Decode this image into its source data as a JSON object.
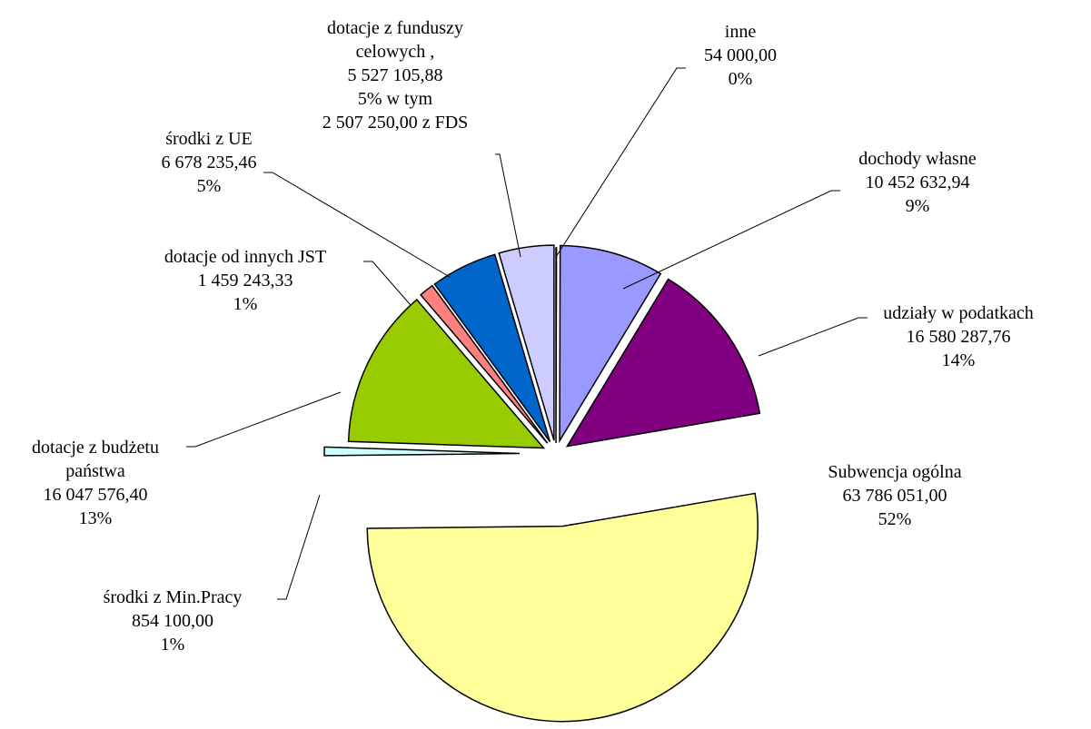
{
  "chart_data": {
    "type": "pie",
    "categories": [
      "inne",
      "dochody własne",
      "udziały w podatkach",
      "Subwencja ogólna",
      "środki z Min.Pracy",
      "dotacje z budżetu państwa",
      "dotacje od innych JST",
      "środki z UE",
      "dotacje z funduszy celowych ,"
    ],
    "values": [
      54000,
      10452632.94,
      16580287.76,
      63786051,
      854100,
      16047576.4,
      1459243.33,
      6678235.46,
      5527105.88
    ],
    "value_labels": [
      "54 000,00",
      "10 452 632,94",
      "16 580 287,76",
      "63 786 051,00",
      "854 100,00",
      "16 047 576,40",
      "1 459 243,33",
      "6 678 235,46",
      "5 527 105,88"
    ],
    "percentages": [
      0,
      9,
      14,
      52,
      1,
      13,
      1,
      5,
      5
    ],
    "percentage_labels": [
      "0%",
      "9%",
      "14%",
      "52%",
      "1%",
      "13%",
      "1%",
      "5%",
      "5%"
    ],
    "colors": [
      "#ffffff",
      "#9999ff",
      "#800080",
      "#ffff99",
      "#ccffff",
      "#99cc00",
      "#ff8080",
      "#0066cc",
      "#ccccff"
    ],
    "annotation": [
      "w tym",
      "2 507 250,00 z FDS"
    ]
  }
}
